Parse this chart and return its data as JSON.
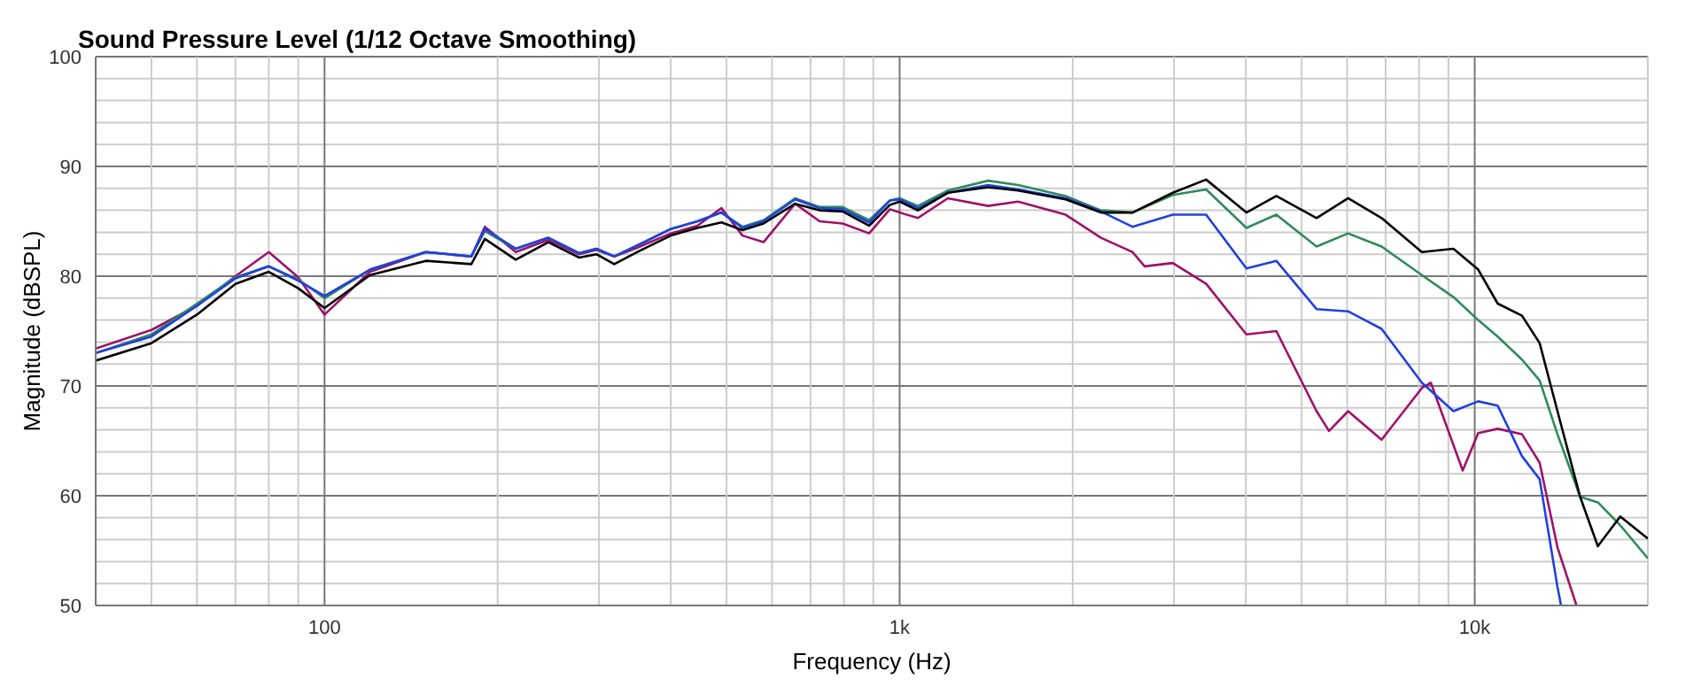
{
  "chart_data": {
    "type": "line",
    "title": "Sound Pressure Level (1/12 Octave Smoothing)",
    "xlabel": "Frequency (Hz)",
    "ylabel": "Magnitude (dBSPL)",
    "log": "x",
    "grid": true,
    "marker": "none",
    "line_style": "solid",
    "xlim": [
      40,
      20000
    ],
    "ylim": [
      50,
      100
    ],
    "xticks": [
      {
        "value": 40,
        "label": null
      },
      {
        "value": 50,
        "label": null
      },
      {
        "value": 60,
        "label": null
      },
      {
        "value": 70,
        "label": null
      },
      {
        "value": 80,
        "label": null
      },
      {
        "value": 90,
        "label": null
      },
      100,
      {
        "value": 200,
        "label": null
      },
      {
        "value": 300,
        "label": null
      },
      {
        "value": 400,
        "label": null
      },
      {
        "value": 500,
        "label": null
      },
      {
        "value": 600,
        "label": null
      },
      {
        "value": 700,
        "label": null
      },
      {
        "value": 800,
        "label": null
      },
      {
        "value": 900,
        "label": null
      },
      {
        "value": 1000,
        "label": "1k"
      },
      {
        "value": 2000,
        "label": null
      },
      {
        "value": 3000,
        "label": null
      },
      {
        "value": 4000,
        "label": null
      },
      {
        "value": 5000,
        "label": null
      },
      {
        "value": 6000,
        "label": null
      },
      {
        "value": 7000,
        "label": null
      },
      {
        "value": 8000,
        "label": null
      },
      {
        "value": 9000,
        "label": null
      },
      {
        "value": 10000,
        "label": "10k"
      },
      {
        "value": 20000,
        "label": null
      }
    ],
    "yticks": [
      50,
      {
        "value": 52,
        "label": null
      },
      {
        "value": 54,
        "label": null
      },
      {
        "value": 56,
        "label": null
      },
      {
        "value": 58,
        "label": null
      },
      60,
      {
        "value": 62,
        "label": null
      },
      {
        "value": 64,
        "label": null
      },
      {
        "value": 66,
        "label": null
      },
      {
        "value": 68,
        "label": null
      },
      70,
      {
        "value": 72,
        "label": null
      },
      {
        "value": 74,
        "label": null
      },
      {
        "value": 76,
        "label": null
      },
      {
        "value": 78,
        "label": null
      },
      80,
      {
        "value": 82,
        "label": null
      },
      {
        "value": 84,
        "label": null
      },
      {
        "value": 86,
        "label": null
      },
      {
        "value": 88,
        "label": null
      },
      90,
      {
        "value": 92,
        "label": null
      },
      {
        "value": 94,
        "label": null
      },
      {
        "value": 96,
        "label": null
      },
      {
        "value": 98,
        "label": null
      },
      100
    ],
    "x": [
      40,
      50,
      60,
      70,
      80,
      90,
      100,
      120,
      150,
      180,
      190,
      215,
      245,
      277,
      297,
      319,
      350,
      400,
      445,
      490,
      533,
      580,
      658,
      726,
      796,
      885,
      962,
      1000,
      1076,
      1213,
      1425,
      1607,
      1944,
      2239,
      2541,
      2985,
      3412,
      4009,
      4519,
      5309,
      6025,
      6887,
      8091,
      9183,
      10140,
      10965,
      12084,
      12969,
      13928,
      15251,
      16370,
      17910,
      20000
    ],
    "series": [
      {
        "color": "#a0106a",
        "x": [
          40,
          50,
          60,
          70,
          80,
          90,
          100,
          120,
          150,
          180,
          190,
          215,
          245,
          277,
          297,
          319,
          350,
          400,
          445,
          490,
          533,
          580,
          658,
          726,
          796,
          885,
          962,
          1000,
          1076,
          1213,
          1425,
          1607,
          1944,
          2239,
          2541,
          2667,
          2985,
          3412,
          4009,
          4519,
          5309,
          5580,
          6025,
          6887,
          8091,
          8387,
          9530,
          10140,
          10965,
          12084,
          12969,
          13928,
          15030
        ],
        "values": [
          73.4,
          75.1,
          77.3,
          80.0,
          82.2,
          79.9,
          76.5,
          80.4,
          82.2,
          81.8,
          84.5,
          82.2,
          83.3,
          82.0,
          82.4,
          81.8,
          82.6,
          83.9,
          84.6,
          86.2,
          83.7,
          83.1,
          86.6,
          85.0,
          84.8,
          83.9,
          86.1,
          85.8,
          85.3,
          87.1,
          86.4,
          86.8,
          85.6,
          83.5,
          82.2,
          80.9,
          81.2,
          79.3,
          74.7,
          75.0,
          67.7,
          65.9,
          67.7,
          65.1,
          69.8,
          70.3,
          62.3,
          65.7,
          66.1,
          65.6,
          63.0,
          55.3,
          50.0
        ]
      },
      {
        "color": "#2e8b57",
        "values": [
          73.0,
          74.7,
          77.5,
          79.9,
          80.9,
          79.7,
          78.0,
          80.6,
          82.2,
          81.8,
          84.1,
          82.5,
          83.5,
          82.1,
          82.5,
          81.8,
          82.8,
          84.3,
          85.0,
          85.8,
          84.5,
          85.1,
          87.1,
          86.3,
          86.3,
          85.1,
          86.9,
          87.1,
          86.4,
          87.8,
          88.7,
          88.3,
          87.3,
          86.0,
          85.8,
          87.4,
          87.9,
          84.4,
          85.6,
          82.7,
          83.9,
          82.7,
          80.1,
          78.1,
          76.0,
          74.5,
          72.4,
          70.5,
          65.6,
          59.9,
          59.4,
          57.3,
          54.3
        ]
      },
      {
        "color": "#2040e0",
        "x": [
          40,
          50,
          60,
          70,
          80,
          90,
          100,
          120,
          150,
          180,
          190,
          215,
          245,
          277,
          297,
          319,
          350,
          400,
          445,
          490,
          533,
          580,
          658,
          726,
          796,
          885,
          962,
          1000,
          1076,
          1213,
          1425,
          1607,
          1944,
          2239,
          2541,
          2985,
          3412,
          4009,
          4519,
          5309,
          6025,
          6887,
          8091,
          9183,
          10140,
          10965,
          12084,
          12969,
          13928,
          14130
        ],
        "values": [
          73.0,
          74.5,
          77.3,
          79.8,
          80.9,
          79.6,
          78.2,
          80.6,
          82.2,
          81.8,
          84.3,
          82.5,
          83.5,
          82.1,
          82.5,
          81.8,
          82.8,
          84.3,
          85.0,
          85.8,
          84.4,
          85.0,
          87.0,
          86.2,
          86.1,
          84.9,
          86.9,
          87.0,
          86.2,
          87.6,
          88.3,
          87.9,
          87.1,
          85.9,
          84.5,
          85.6,
          85.6,
          80.7,
          81.4,
          77.0,
          76.8,
          75.2,
          70.3,
          67.7,
          68.6,
          68.2,
          63.6,
          61.5,
          51.7,
          50.0
        ]
      },
      {
        "color": "#000000",
        "values": [
          72.3,
          73.9,
          76.5,
          79.3,
          80.4,
          78.9,
          77.1,
          80.1,
          81.4,
          81.1,
          83.4,
          81.5,
          83.1,
          81.7,
          82.0,
          81.1,
          82.2,
          83.7,
          84.4,
          84.9,
          84.2,
          84.8,
          86.6,
          86.0,
          85.9,
          84.6,
          86.5,
          86.8,
          86.0,
          87.6,
          88.1,
          87.8,
          87.0,
          85.8,
          85.8,
          87.6,
          88.8,
          85.8,
          87.3,
          85.3,
          87.1,
          85.3,
          82.2,
          82.5,
          80.6,
          77.5,
          76.4,
          73.9,
          67.7,
          59.9,
          55.4,
          58.1,
          56.1
        ]
      }
    ]
  }
}
